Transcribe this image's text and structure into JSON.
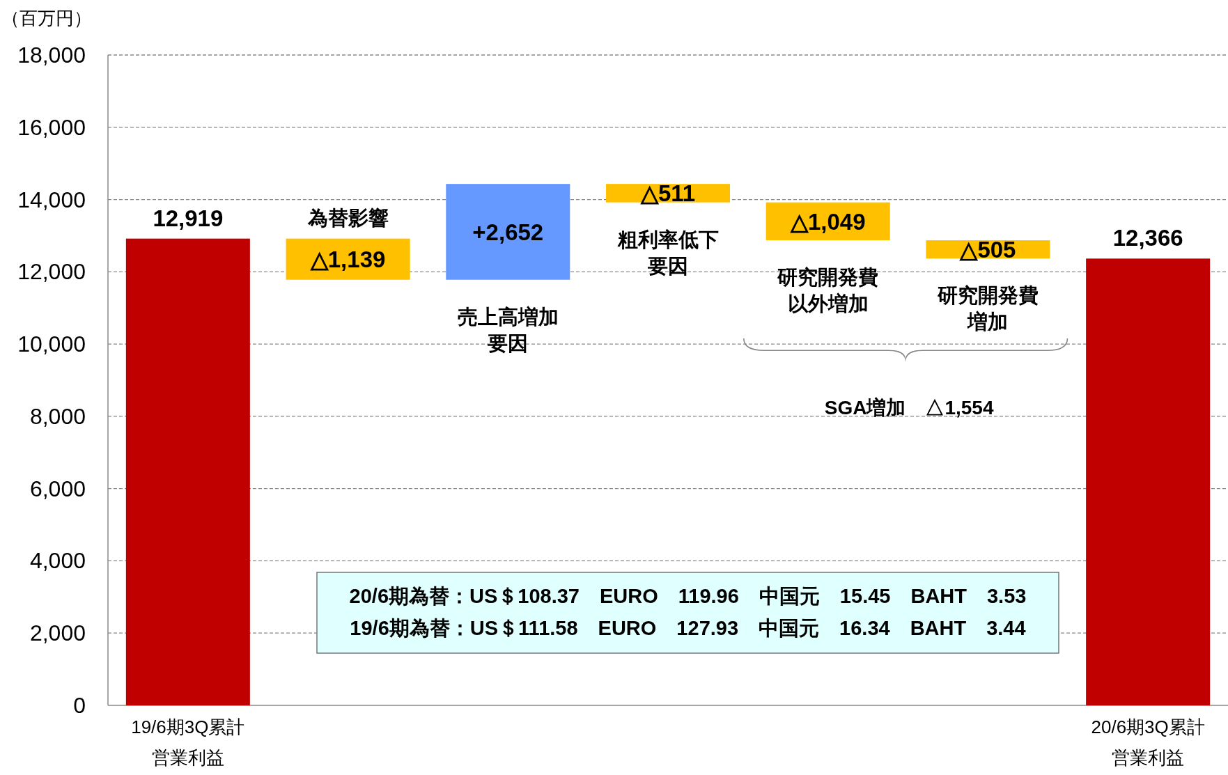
{
  "chart_data": {
    "type": "bar",
    "ylabel": "（百万円）",
    "categories": [
      "19/6期3Q累計営業利益",
      "為替影響",
      "売上高増加要因",
      "粗利率低下要因",
      "研究開発費以外増加",
      "研究開発費増加",
      "20/6期3Q累計営業利益"
    ],
    "values": [
      12919,
      -1139,
      2652,
      -511,
      -1049,
      -505,
      12366
    ],
    "base": [
      0,
      12919,
      11780,
      14432,
      13921,
      12872,
      0
    ],
    "colors": [
      "#c00000",
      "#ffc000",
      "#6699ff",
      "#ffc000",
      "#ffc000",
      "#ffc000",
      "#c00000"
    ],
    "value_labels": [
      "12,919",
      "△1,139",
      "+2,652",
      "△511",
      "△1,049",
      "△505",
      "12,366"
    ],
    "ylim": [
      0,
      18000
    ],
    "yticks": [
      0,
      {
        "value": 2000,
        "label": "2,000"
      },
      {
        "value": 4000,
        "label": "4,000"
      },
      {
        "value": 6000,
        "label": "6,000"
      },
      {
        "value": 8000,
        "label": "8,000"
      },
      {
        "value": 10000,
        "label": "10,000"
      },
      {
        "value": 12000,
        "label": "12,000"
      },
      {
        "value": 14000,
        "label": "14,000"
      },
      {
        "value": 16000,
        "label": "16,000"
      },
      {
        "value": 18000,
        "label": "18,000"
      }
    ],
    "grid": "y",
    "annotations": [
      "SGA増加　△1,554",
      "20/6期為替：US＄108.37　EURO　119.96　中国元　15.45　BAHT　3.53",
      "19/6期為替：US＄111.58　EURO　127.93　中国元　16.34　BAHT　3.44"
    ]
  }
}
